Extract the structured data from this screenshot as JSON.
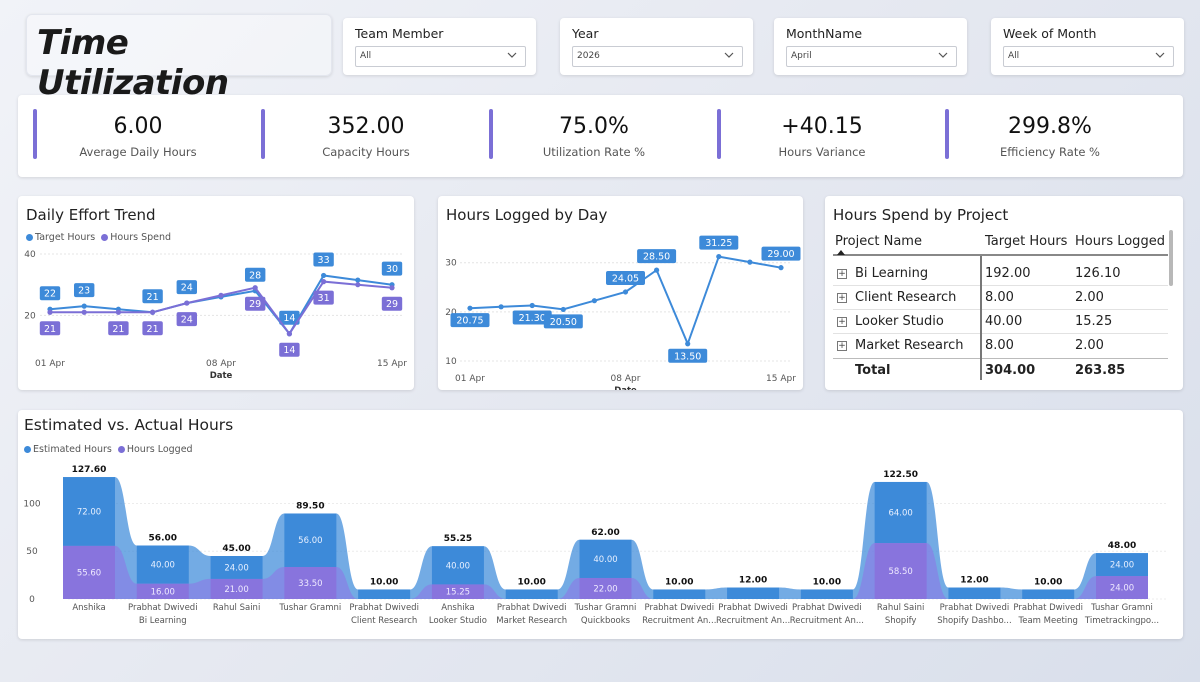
{
  "app": {
    "title": "Time Utilization"
  },
  "slicers": [
    {
      "label": "Team Member",
      "value": "All"
    },
    {
      "label": "Year",
      "value": "2026"
    },
    {
      "label": "MonthName",
      "value": "April"
    },
    {
      "label": "Week of Month",
      "value": "All"
    }
  ],
  "kpis": [
    {
      "value": "6.00",
      "label": "Average Daily Hours"
    },
    {
      "value": "352.00",
      "label": "Capacity Hours"
    },
    {
      "value": "75.0%",
      "label": "Utilization Rate %"
    },
    {
      "value": "+40.15",
      "label": "Hours Variance"
    },
    {
      "value": "299.8%",
      "label": "Efficiency Rate %"
    }
  ],
  "colors": {
    "blue": "#3d8ad9",
    "purple": "#7b6fd6",
    "kpi_bar": "#7b6fd6"
  },
  "icons": {
    "dropdown": "chevron-down-icon",
    "expand": "plus-box-icon",
    "sort": "sort-triangle-icon"
  },
  "daily_trend": {
    "title": "Daily Effort Trend",
    "xlabel": "Date",
    "x_ticks": [
      "01 Apr",
      "08 Apr",
      "15 Apr"
    ],
    "y_ticks": [
      "20",
      "40"
    ]
  },
  "hours_by_day": {
    "title": "Hours Logged by Day",
    "xlabel": "Date",
    "x_ticks": [
      "01 Apr",
      "08 Apr",
      "15 Apr"
    ],
    "y_ticks": [
      "10",
      "20",
      "30"
    ]
  },
  "project_table": {
    "title": "Hours Spend by Project",
    "headers": [
      "Project Name",
      "Target Hours",
      "Hours Logged"
    ],
    "rows": [
      {
        "name": "Bi Learning",
        "target": "192.00",
        "logged": "126.10"
      },
      {
        "name": "Client Research",
        "target": "8.00",
        "logged": "2.00"
      },
      {
        "name": "Looker Studio",
        "target": "40.00",
        "logged": "15.25"
      },
      {
        "name": "Market Research",
        "target": "8.00",
        "logged": "2.00"
      }
    ],
    "total": {
      "label": "Total",
      "target": "304.00",
      "logged": "263.85"
    }
  },
  "est_actual": {
    "title": "Estimated vs. Actual Hours",
    "y_ticks": [
      "0",
      "50",
      "100"
    ]
  },
  "chart_data": [
    {
      "type": "line",
      "title": "Daily Effort Trend",
      "xlabel": "Date",
      "x": [
        "01 Apr",
        "02 Apr",
        "03 Apr",
        "06 Apr",
        "07 Apr",
        "08 Apr",
        "09 Apr",
        "10 Apr",
        "13 Apr",
        "14 Apr",
        "15 Apr"
      ],
      "ylim": [
        10,
        40
      ],
      "series": [
        {
          "name": "Target Hours",
          "values": [
            22,
            23,
            null,
            21,
            24,
            null,
            28,
            14,
            33,
            null,
            30
          ]
        },
        {
          "name": "Hours Spend",
          "values": [
            21,
            null,
            21,
            21,
            24,
            null,
            29,
            14,
            31,
            null,
            29
          ]
        }
      ]
    },
    {
      "type": "line",
      "title": "Hours Logged by Day",
      "xlabel": "Date",
      "x": [
        "01 Apr",
        "02 Apr",
        "03 Apr",
        "06 Apr",
        "07 Apr",
        "08 Apr",
        "09 Apr",
        "10 Apr",
        "13 Apr",
        "14 Apr",
        "15 Apr"
      ],
      "ylim": [
        10,
        33
      ],
      "series": [
        {
          "name": "Hours Logged",
          "values": [
            20.75,
            null,
            21.3,
            20.5,
            null,
            24.05,
            28.5,
            13.5,
            31.25,
            null,
            29.0
          ]
        }
      ]
    },
    {
      "type": "area",
      "title": "Estimated vs. Actual Hours",
      "categories": [
        [
          "Anshika",
          ""
        ],
        [
          "Prabhat Dwivedi",
          "Bi Learning"
        ],
        [
          "Rahul Saini",
          ""
        ],
        [
          "Tushar Gramni",
          ""
        ],
        [
          "Prabhat Dwivedi",
          "Client Research"
        ],
        [
          "Anshika",
          "Looker Studio"
        ],
        [
          "Prabhat Dwivedi",
          "Market Research"
        ],
        [
          "Tushar Gramni",
          "Quickbooks"
        ],
        [
          "Prabhat Dwivedi",
          "Recruitment An..."
        ],
        [
          "Prabhat Dwivedi",
          "Recruitment An..."
        ],
        [
          "Prabhat Dwivedi",
          "Recruitment An..."
        ],
        [
          "Rahul Saini",
          "Shopify"
        ],
        [
          "Prabhat Dwivedi",
          "Shopify Dashbo..."
        ],
        [
          "Prabhat Dwivedi",
          "Team Meeting"
        ],
        [
          "Tushar Gramni",
          "Timetrackingpo..."
        ]
      ],
      "series": [
        {
          "name": "Estimated Hours",
          "values": [
            72.0,
            40.0,
            24.0,
            56.0,
            10.0,
            40.0,
            10.0,
            40.0,
            10.0,
            12.0,
            10.0,
            64.0,
            12.0,
            10.0,
            24.0
          ]
        },
        {
          "name": "Hours Logged",
          "values": [
            55.6,
            16.0,
            21.0,
            33.5,
            0,
            15.25,
            0,
            22.0,
            0,
            0,
            0,
            58.5,
            0,
            0,
            24.0
          ]
        }
      ],
      "totals": [
        "127.60",
        "56.00",
        "45.00",
        "89.50",
        "10.00",
        "55.25",
        "10.00",
        "62.00",
        "10.00",
        "12.00",
        "10.00",
        "122.50",
        "12.00",
        "10.00",
        "48.00"
      ],
      "ylim": [
        0,
        135
      ]
    }
  ]
}
